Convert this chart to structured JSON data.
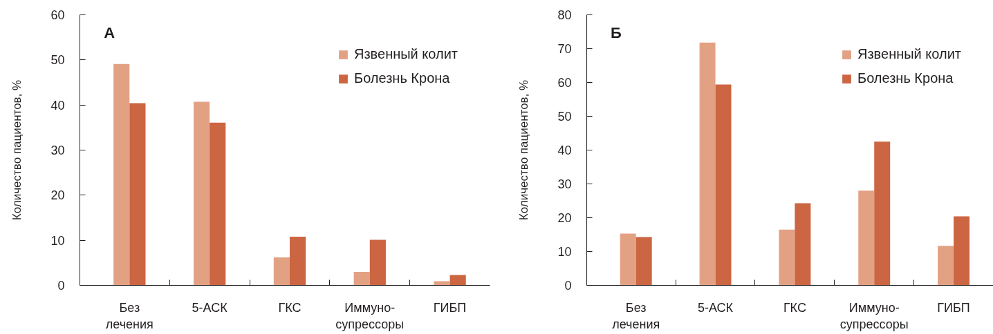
{
  "chart_data": [
    {
      "type": "bar",
      "title": "А",
      "categories": [
        "Без\nлечения",
        "5-АСК",
        "ГКС",
        "Иммуно-\nсупрессоры",
        "ГИБП"
      ],
      "ylabel": "Количество пациентов, %",
      "ylim": [
        0,
        60
      ],
      "yticks": [
        0,
        10,
        20,
        30,
        40,
        50,
        60
      ],
      "grid": false,
      "legend": "top right",
      "series": [
        {
          "name": "Язвенный колит",
          "color": "#e3a184",
          "values": [
            49.1,
            40.7,
            6.2,
            3.0,
            0.9
          ]
        },
        {
          "name": "Болезнь Крона",
          "color": "#cc6541",
          "values": [
            40.4,
            36.1,
            10.8,
            10.1,
            2.3
          ]
        }
      ]
    },
    {
      "type": "bar",
      "title": "Б",
      "categories": [
        "Без\nлечения",
        "5-АСК",
        "ГКС",
        "Иммуно-\nсупрессоры",
        "ГИБП"
      ],
      "ylabel": "Количество пациентов, %",
      "ylim": [
        0,
        80
      ],
      "yticks": [
        0,
        10,
        20,
        30,
        40,
        50,
        60,
        70,
        80
      ],
      "grid": false,
      "legend": "top right",
      "series": [
        {
          "name": "Язвенный колит",
          "color": "#e3a184",
          "values": [
            15.3,
            71.8,
            16.5,
            28.0,
            11.7
          ]
        },
        {
          "name": "Болезнь Крона",
          "color": "#cc6541",
          "values": [
            14.3,
            59.4,
            24.3,
            42.5,
            20.4
          ]
        }
      ]
    }
  ]
}
